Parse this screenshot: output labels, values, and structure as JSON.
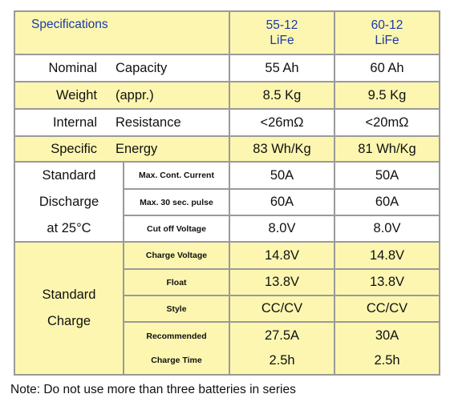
{
  "header": {
    "title": "Specifications",
    "models": [
      {
        "line1": "55-12",
        "line2": "LiFe"
      },
      {
        "line1": "60-12",
        "line2": "LiFe"
      }
    ]
  },
  "simple_rows": [
    {
      "left": "Nominal",
      "right": "Capacity",
      "v1": "55 Ah",
      "v2": "60 Ah"
    },
    {
      "left": "Weight",
      "right": "(appr.)",
      "v1": "8.5 Kg",
      "v2": "9.5 Kg"
    },
    {
      "left": "Internal",
      "right": "Resistance",
      "v1": "<26mΩ",
      "v2": "<20mΩ"
    },
    {
      "left": "Specific",
      "right": "Energy",
      "v1": "83 Wh/Kg",
      "v2": "81 Wh/Kg"
    }
  ],
  "discharge": {
    "group": [
      "Standard",
      "Discharge",
      "at 25°C"
    ],
    "rows": [
      {
        "label": "Max. Cont. Current",
        "v1": "50A",
        "v2": "50A"
      },
      {
        "label": "Max. 30 sec. pulse",
        "v1": "60A",
        "v2": "60A"
      },
      {
        "label": "Cut off Voltage",
        "v1": "8.0V",
        "v2": "8.0V"
      }
    ]
  },
  "charge": {
    "group": [
      "Standard",
      "Charge"
    ],
    "rows": [
      {
        "label": "Charge Voltage",
        "v1": "14.8V",
        "v2": "14.8V"
      },
      {
        "label": "Float",
        "v1": "13.8V",
        "v2": "13.8V"
      },
      {
        "label": "Style",
        "v1": "CC/CV",
        "v2": "CC/CV"
      }
    ],
    "recommended": {
      "label1": "Recommended",
      "label2": "Charge Time",
      "v1a": "27.5A",
      "v1b": "2.5h",
      "v2a": "30A",
      "v2b": "2.5h"
    }
  },
  "note": "Note: Do not use more than three batteries in series"
}
